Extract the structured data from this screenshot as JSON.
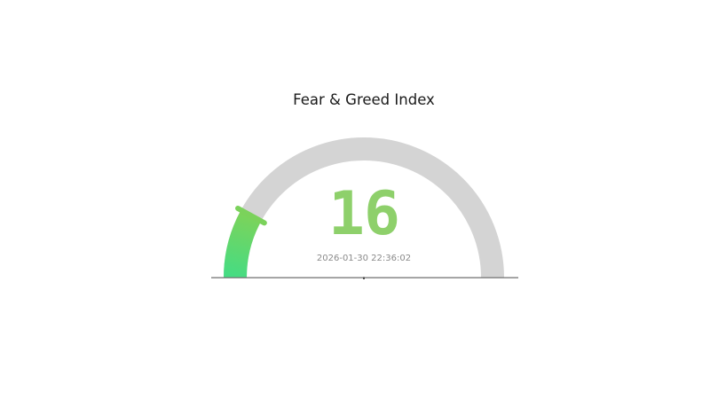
{
  "page": {
    "background": "#ffffff"
  },
  "chart_data": {
    "type": "gauge",
    "title": "Fear & Greed Index",
    "value": 16,
    "min": 0,
    "max": 100,
    "timestamp": "2026-01-30 22:36:02",
    "layout_hints": {
      "arc_span_degrees": 180,
      "grid": false,
      "legend": false
    },
    "colors": {
      "track": "#d4d4d4",
      "arc_gradient_start": "#45dc83",
      "arc_gradient_end": "#7cd35a",
      "thumb": "#7bd25b",
      "value_text": "#8ed06b",
      "timestamp_text": "#8a8a8a",
      "title_text": "#1a1a1a",
      "baseline": "#7b7b7b",
      "baseline_tick": "#4d4d4d"
    }
  }
}
